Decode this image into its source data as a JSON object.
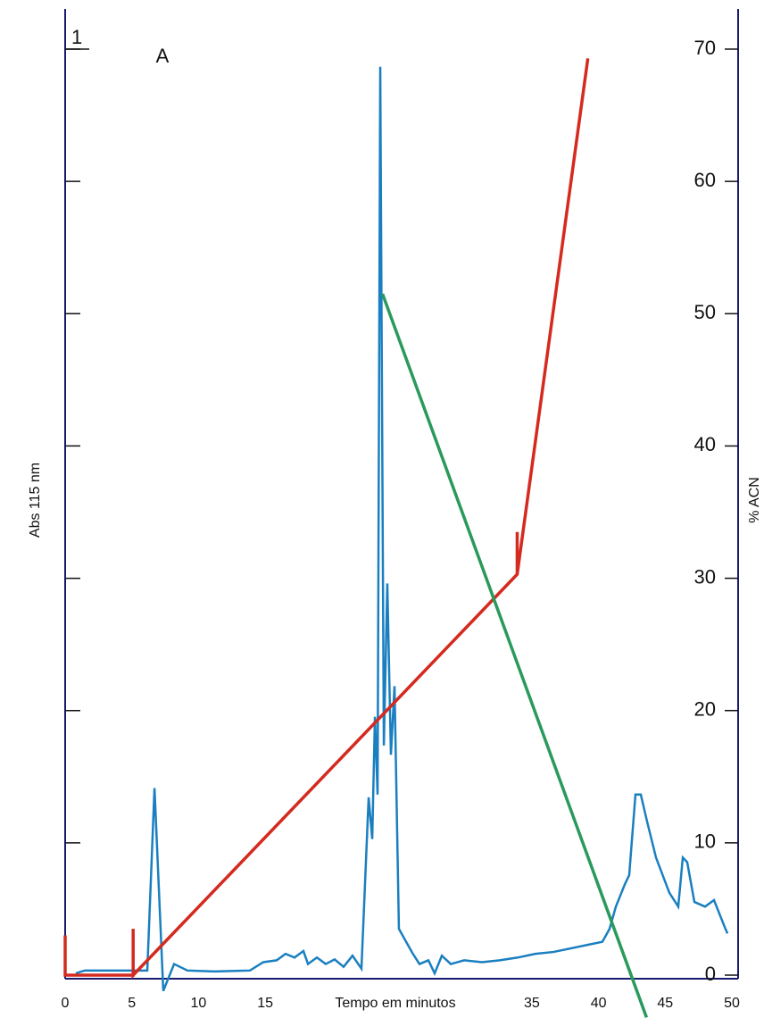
{
  "chart_data": {
    "type": "line",
    "panel_label": "A",
    "xlabel": "Tempo em minutos",
    "ylabel": "Abs 115 nm",
    "y2label": "% ACN",
    "xlim": [
      0,
      50
    ],
    "xticks": [
      0,
      5,
      10,
      15,
      35,
      40,
      45,
      50
    ],
    "ylim": [
      0,
      1
    ],
    "yticks": [
      1
    ],
    "y2lim": [
      0,
      70
    ],
    "y2ticks": [
      0,
      10,
      20,
      30,
      40,
      50,
      60,
      70
    ],
    "series": [
      {
        "color": "#1a7fc0",
        "axis": "y",
        "x": [
          0.8,
          1.47,
          5.15,
          6.16,
          6.7,
          7.36,
          8.17,
          9.17,
          11.18,
          13.86,
          14.86,
          15.86,
          16.53,
          17.2,
          17.87,
          18.21,
          18.88,
          19.54,
          20.21,
          20.88,
          21.55,
          22.22,
          22.76,
          23.03,
          23.23,
          23.43,
          23.63,
          23.9,
          24.16,
          24.43,
          24.7,
          25.03,
          25.57,
          26.04,
          26.57,
          27.24,
          27.71,
          28.25,
          28.92,
          29.92,
          31.26,
          32.6,
          33.94,
          35.27,
          36.61,
          37.95,
          39.29,
          40.29,
          40.83,
          41.3,
          41.97,
          42.3,
          42.77,
          43.17,
          43.64,
          44.31,
          45.31,
          45.98,
          46.32,
          46.65,
          47.19,
          47.99,
          48.66,
          49.46,
          49.67
        ],
        "values": [
          0.002,
          0.005,
          0.005,
          0.005,
          0.202,
          -0.017,
          0.012,
          0.005,
          0.004,
          0.005,
          0.014,
          0.016,
          0.023,
          0.019,
          0.026,
          0.012,
          0.019,
          0.012,
          0.017,
          0.009,
          0.021,
          0.007,
          0.192,
          0.147,
          0.279,
          0.195,
          0.981,
          0.248,
          0.423,
          0.238,
          0.312,
          0.05,
          0.036,
          0.024,
          0.012,
          0.016,
          0.002,
          0.021,
          0.012,
          0.016,
          0.014,
          0.016,
          0.019,
          0.023,
          0.025,
          0.029,
          0.033,
          0.036,
          0.05,
          0.074,
          0.098,
          0.108,
          0.195,
          0.195,
          0.166,
          0.127,
          0.089,
          0.074,
          0.127,
          0.122,
          0.079,
          0.074,
          0.081,
          0.052,
          0.045
        ]
      },
      {
        "color": "#d42a1f",
        "axis": "y2",
        "x": [
          0,
          0,
          5.1,
          5.1,
          5.1,
          33.9,
          33.9,
          33.9,
          39.2
        ],
        "values": [
          3,
          0,
          0,
          3.5,
          0,
          30.3,
          33.5,
          30.3,
          69.3
        ]
      },
      {
        "color": "#2a9a5c",
        "axis": "y2",
        "x": [
          23.8,
          43.6
        ],
        "values": [
          51.5,
          -3.2
        ]
      }
    ]
  }
}
